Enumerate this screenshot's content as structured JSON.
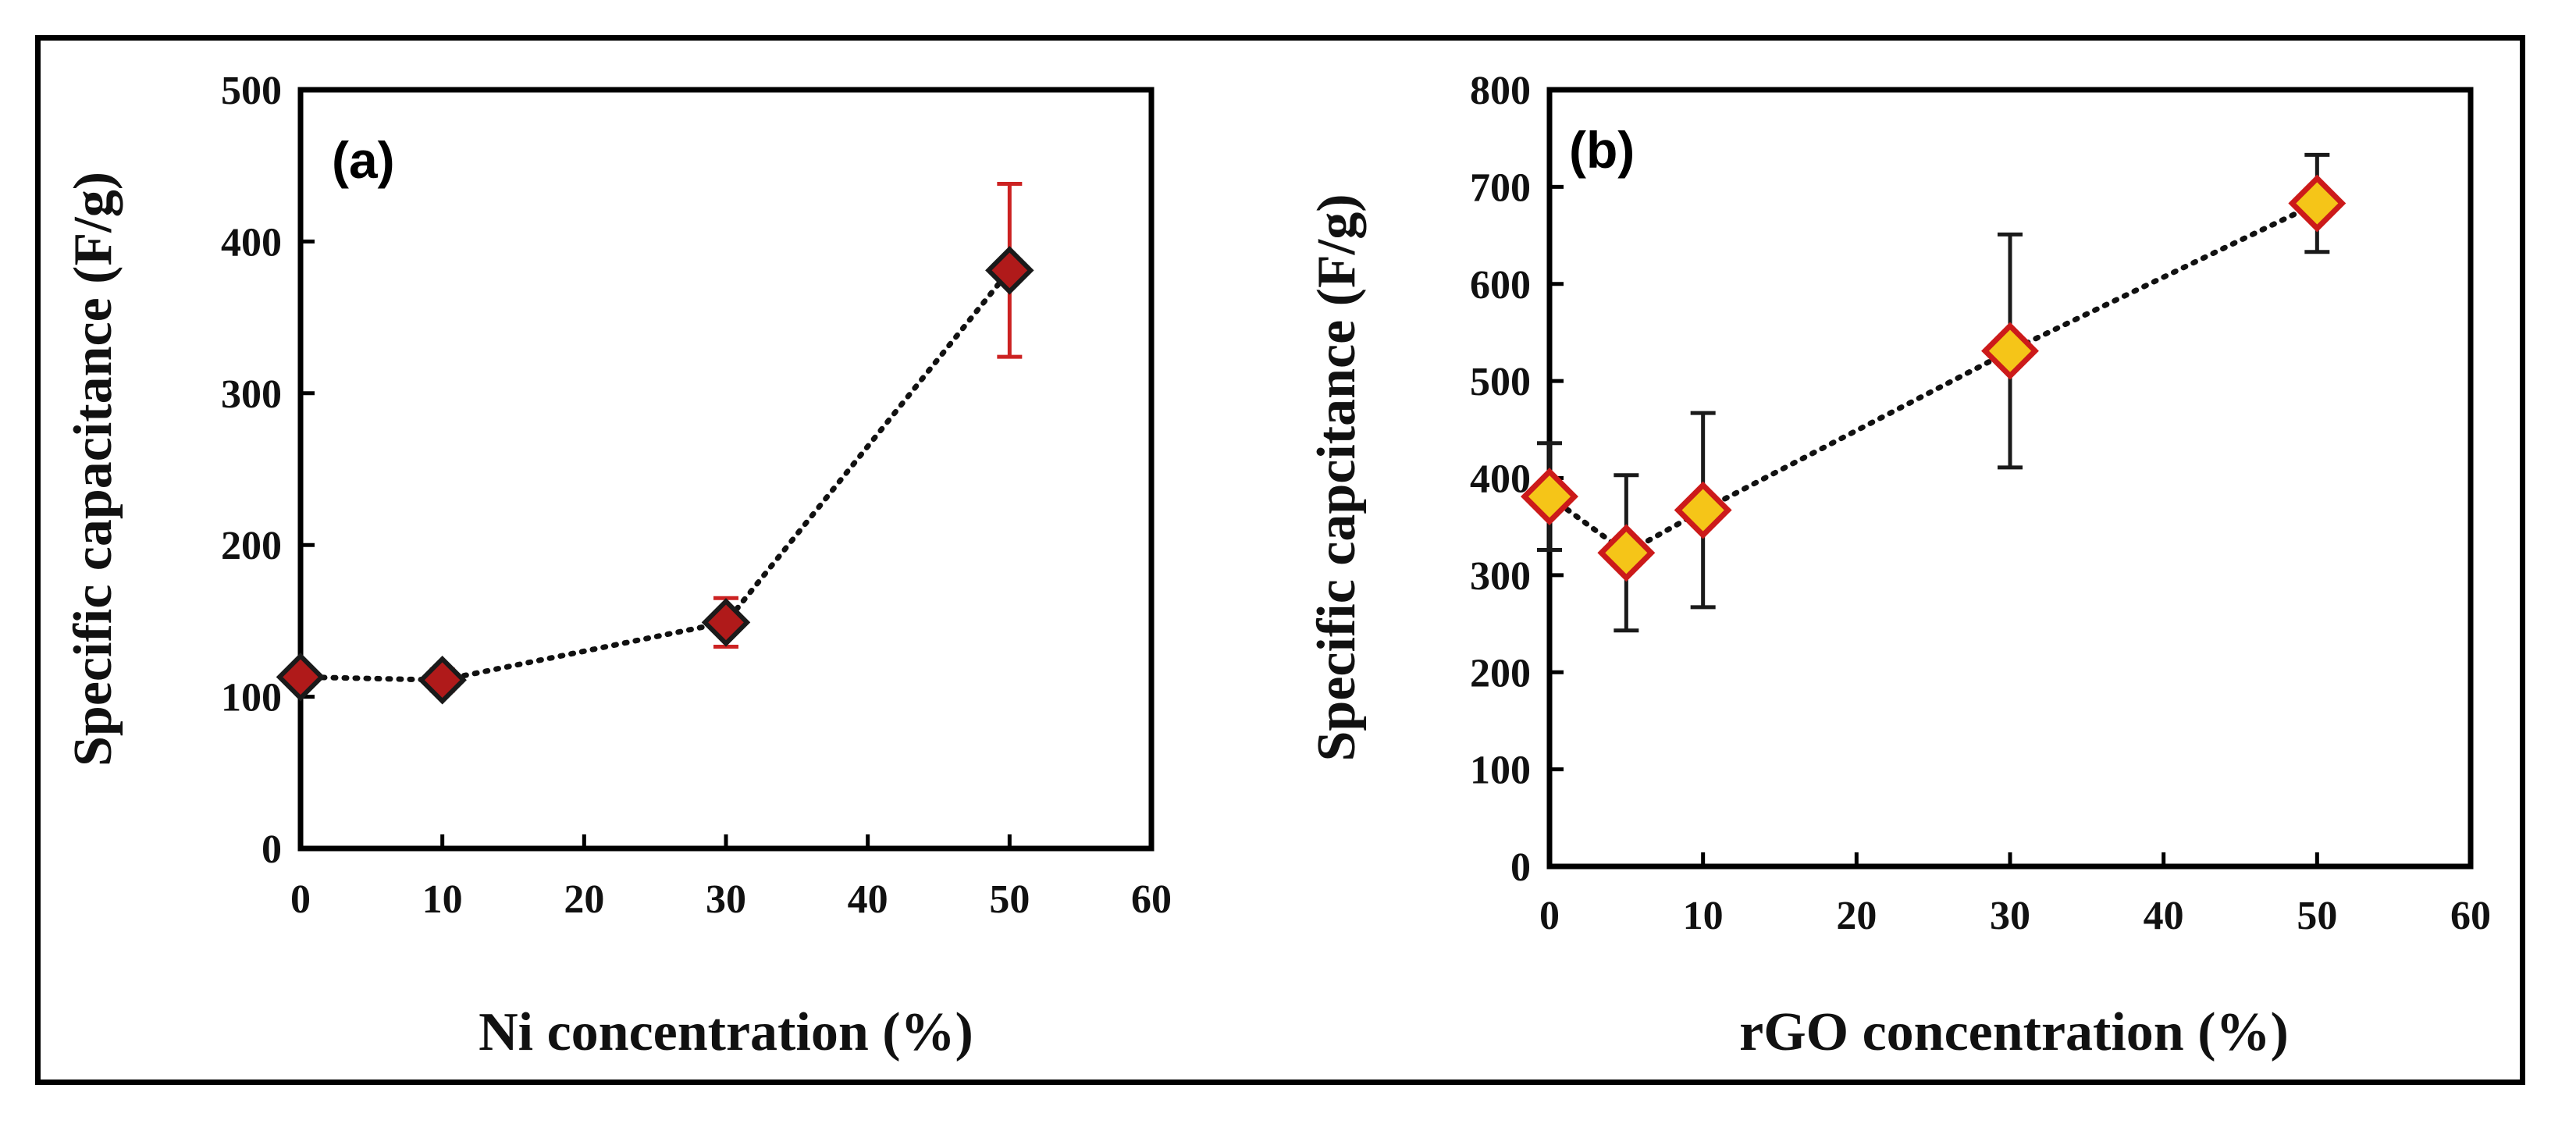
{
  "chart_data": [
    {
      "type": "scatter",
      "panel_label": "(a)",
      "xlabel": "Ni concentration (%)",
      "ylabel": "Specific capacitance (F/g)",
      "xlim": [
        0,
        60
      ],
      "ylim": [
        0,
        500
      ],
      "xticks": [
        "0",
        "10",
        "20",
        "30",
        "40",
        "50",
        "60"
      ],
      "yticks": [
        "0",
        "100",
        "200",
        "300",
        "400",
        "500"
      ],
      "grid": false,
      "series": [
        {
          "name": "Ni",
          "x": [
            0,
            10,
            30,
            50
          ],
          "y": [
            113,
            111,
            149,
            381
          ],
          "error": [
            5,
            7,
            16,
            57
          ],
          "marker": "diamond",
          "marker_fill": "#b01a1a",
          "marker_edge": "#1a1a1a",
          "errorbar_color": "#cc2222",
          "line_style": "dotted"
        }
      ]
    },
    {
      "type": "scatter",
      "panel_label": "(b)",
      "xlabel": "rGO concentration (%)",
      "ylabel": "Specific capcitance (F/g)",
      "xlim": [
        0,
        60
      ],
      "ylim": [
        0,
        800
      ],
      "xticks": [
        "0",
        "10",
        "20",
        "30",
        "40",
        "50",
        "60"
      ],
      "yticks": [
        "0",
        "100",
        "200",
        "300",
        "400",
        "500",
        "600",
        "700",
        "800"
      ],
      "grid": false,
      "series": [
        {
          "name": "rGO",
          "x": [
            0,
            5,
            10,
            30,
            50
          ],
          "y": [
            381,
            323,
            367,
            531,
            683
          ],
          "error": [
            55,
            80,
            100,
            120,
            50
          ],
          "marker": "diamond",
          "marker_fill": "#f5c518",
          "marker_edge": "#cc1a1a",
          "errorbar_color": "#1a1a1a",
          "line_style": "dotted"
        }
      ]
    }
  ]
}
